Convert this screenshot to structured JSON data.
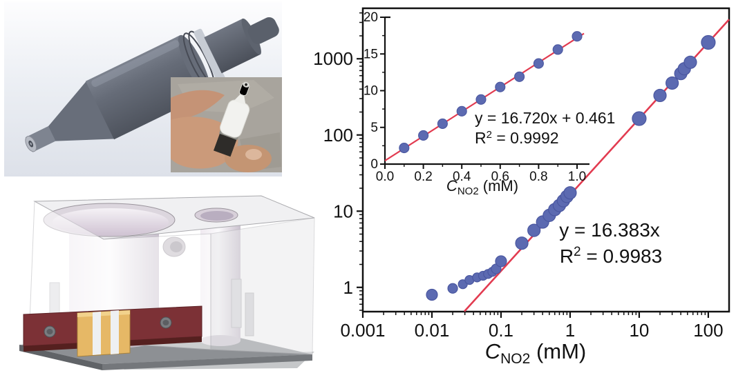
{
  "figure": {
    "panels": {
      "sensor_render": {
        "description_name": "sensor-cad-render"
      },
      "probe_photo": {
        "description_name": "probe-photo-inset"
      },
      "flow_cell_render": {
        "description_name": "flow-cell-cad-render"
      }
    },
    "colors": {
      "marker": "#5c6ab1",
      "marker_edge": "#4a57a0",
      "fit_line": "#e23b50",
      "axis": "#111111",
      "cad_body": "#60656f",
      "cad_maroon": "#7c3136",
      "cad_gold": "#e6b866"
    }
  },
  "chart_data": [
    {
      "id": "main_calibration",
      "type": "scatter",
      "x_scale": "log",
      "y_scale": "log",
      "xlim": [
        0.001,
        200
      ],
      "ylim": [
        0.48,
        4600
      ],
      "grid": false,
      "xlabel": {
        "symbol": "C",
        "subscript": "NO2",
        "unit": " (mM)"
      },
      "x_tick_values": [
        0.001,
        0.01,
        0.1,
        1,
        10,
        100
      ],
      "x_tick_labels": [
        "0.001",
        "0.01",
        "0.1",
        "1",
        "10",
        "100"
      ],
      "y_tick_values": [
        1,
        10,
        100,
        1000
      ],
      "y_tick_labels": [
        "1",
        "10",
        "100",
        "1000"
      ],
      "equation": "y = 16.383x",
      "r_squared": {
        "base": "R",
        "sup": "2",
        "rest": " = 0.9983"
      },
      "fit_line": {
        "slope": 16.383,
        "intercept": 0,
        "x_start": 0.0295,
        "x_end": 200
      },
      "points": [
        [
          0.01,
          0.8,
          8
        ],
        [
          0.02,
          0.97,
          7
        ],
        [
          0.028,
          1.1,
          6.5
        ],
        [
          0.035,
          1.25,
          6.5
        ],
        [
          0.045,
          1.35,
          6.5
        ],
        [
          0.055,
          1.42,
          6.5
        ],
        [
          0.065,
          1.5,
          6.5
        ],
        [
          0.075,
          1.6,
          6.5
        ],
        [
          0.085,
          1.75,
          7
        ],
        [
          0.1,
          2.2,
          8
        ],
        [
          0.2,
          3.8,
          9
        ],
        [
          0.3,
          5.6,
          9
        ],
        [
          0.4,
          7.2,
          9
        ],
        [
          0.5,
          8.8,
          9
        ],
        [
          0.6,
          10.5,
          9
        ],
        [
          0.7,
          11.9,
          9
        ],
        [
          0.8,
          13.7,
          9
        ],
        [
          0.9,
          15.6,
          9
        ],
        [
          1.0,
          17.4,
          9
        ],
        [
          10,
          164,
          10
        ],
        [
          20,
          330,
          9
        ],
        [
          30,
          480,
          9
        ],
        [
          40,
          640,
          9
        ],
        [
          45,
          740,
          9
        ],
        [
          55,
          900,
          9
        ],
        [
          100,
          1640,
          10
        ]
      ]
    },
    {
      "id": "inset_linear",
      "type": "scatter",
      "x_scale": "linear",
      "y_scale": "linear",
      "xlim": [
        0,
        1.036
      ],
      "ylim": [
        0,
        20
      ],
      "grid": false,
      "xlabel": {
        "symbol": "C",
        "subscript": "NO2",
        "unit": " (mM)"
      },
      "x_tick_values": [
        0.0,
        0.2,
        0.4,
        0.6,
        0.8,
        1.0
      ],
      "x_tick_labels": [
        "0.0",
        "0.2",
        "0.4",
        "0.6",
        "0.8",
        "1.0"
      ],
      "y_tick_values": [
        0,
        5,
        10,
        15,
        20
      ],
      "y_tick_labels": [
        "0",
        "5",
        "10",
        "15",
        "20"
      ],
      "equation": "y = 16.720x + 0.461",
      "r_squared": {
        "base": "R",
        "sup": "2",
        "rest": " = 0.9992"
      },
      "fit_line": {
        "slope": 16.72,
        "intercept": 0.461,
        "x_start": 0,
        "x_end": 1.036
      },
      "points": [
        [
          0.1,
          2.2,
          7
        ],
        [
          0.2,
          3.9,
          7
        ],
        [
          0.3,
          5.5,
          7
        ],
        [
          0.4,
          7.2,
          7
        ],
        [
          0.5,
          8.8,
          7
        ],
        [
          0.6,
          10.5,
          7
        ],
        [
          0.7,
          11.9,
          7
        ],
        [
          0.8,
          13.7,
          7
        ],
        [
          0.9,
          15.6,
          7
        ],
        [
          1.0,
          17.4,
          7
        ]
      ]
    }
  ]
}
